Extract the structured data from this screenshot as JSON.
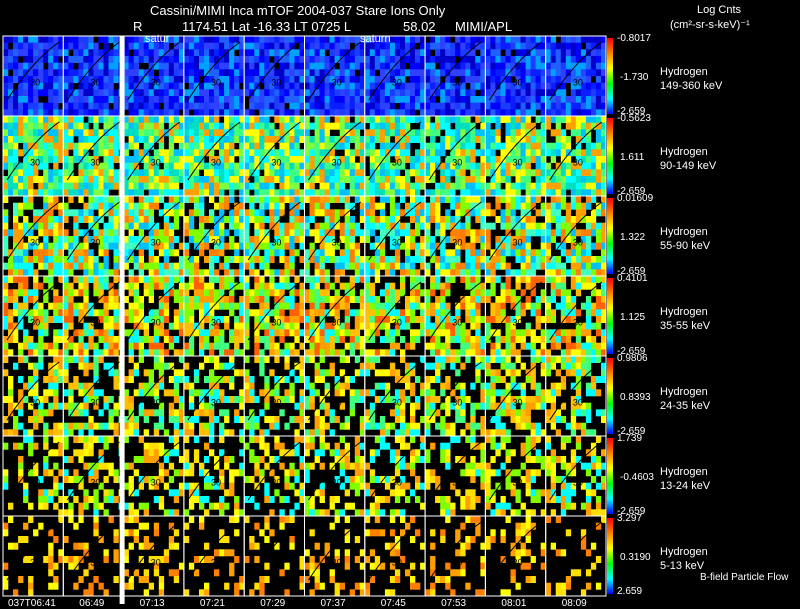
{
  "header": {
    "line1": "Cassini/MIMI Inca mTOF  2004-037    Stare    Ions Only",
    "line2_r": "R",
    "line2_rest": "1174.51  Lat -16.33  LT 0725  L",
    "line2_val": "58.02",
    "line2_org": "MIMI/APL",
    "units_title": "Log Cnts",
    "units": "(cm²-sr-s-keV)⁻¹"
  },
  "overlay_labels": {
    "satur": "satur",
    "saturn": "saturn",
    "contour_30": "30"
  },
  "rows": [
    {
      "species": "Hydrogen",
      "energy": "149-360 keV",
      "cb_max": "-0.8017",
      "cb_mid": "-1.730",
      "cb_min": "-2.659"
    },
    {
      "species": "Hydrogen",
      "energy": "90-149 keV",
      "cb_max": "-0.5623",
      "cb_mid": "1.611",
      "cb_min": "-2.659"
    },
    {
      "species": "Hydrogen",
      "energy": "55-90 keV",
      "cb_max": "0.01609",
      "cb_mid": "1.322",
      "cb_min": "-2.659"
    },
    {
      "species": "Hydrogen",
      "energy": "35-55 keV",
      "cb_max": "0.4101",
      "cb_mid": "1.125",
      "cb_min": "-2.659"
    },
    {
      "species": "Hydrogen",
      "energy": "24-35 keV",
      "cb_max": "0.9806",
      "cb_mid": "0.8393",
      "cb_min": "-2.659"
    },
    {
      "species": "Hydrogen",
      "energy": "13-24 keV",
      "cb_max": "1.739",
      "cb_mid": "-0.4603",
      "cb_min": "-2.659"
    },
    {
      "species": "Hydrogen",
      "energy": "5-13 keV",
      "cb_max": "3.297",
      "cb_mid": "0.3190",
      "cb_min": "2.659"
    }
  ],
  "x_ticks": [
    "037T06:41",
    "06:49",
    "07:13",
    "07:21",
    "07:29",
    "07:37",
    "07:45",
    "07:53",
    "08:01",
    "08:09"
  ],
  "footer_note": "B-field Particle Flow",
  "colors": {
    "background": "#000000",
    "frame": "#ffffff",
    "separator": "#ffffff",
    "colorbar": [
      "#ff0000",
      "#ff8000",
      "#ffff00",
      "#00ff00",
      "#00ffff",
      "#0000ff"
    ]
  }
}
